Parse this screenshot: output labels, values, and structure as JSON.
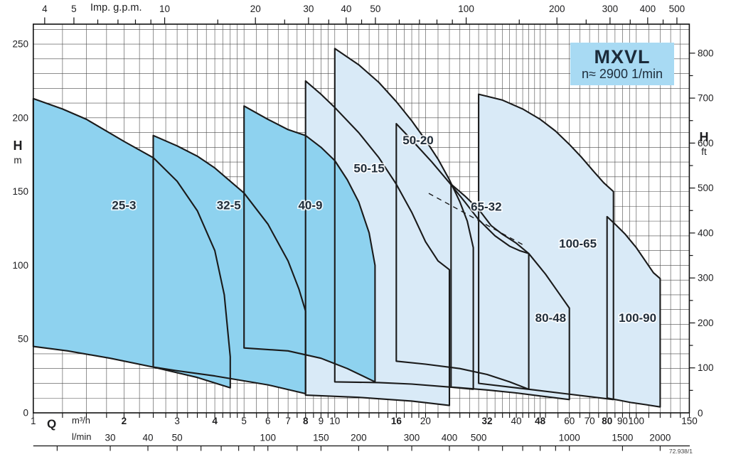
{
  "figure": {
    "model": "MXVL",
    "speed_label": "n≈ 2900 1/min",
    "doc_number": "72.938/1"
  },
  "colors": {
    "dark_fill": "#8ed2ef",
    "light_fill": "#d9eaf7",
    "title_box_fill": "#a8daf3",
    "outline": "#1a1a1a",
    "grid": "#4a4a4a",
    "text": "#1d1d1f",
    "label_text": "#222e3a"
  },
  "chart_data": {
    "type": "area",
    "title": "MXVL",
    "subtitle": "n≈ 2900 1/min",
    "x_scale": "log",
    "x_axis_bottom": {
      "name": "Q",
      "units": [
        "m³/h",
        "l/min"
      ],
      "range_m3h": [
        1,
        150
      ],
      "m3h_labeled": [
        1,
        2,
        3,
        4,
        5,
        6,
        7,
        8,
        9,
        10,
        16,
        20,
        32,
        40,
        48,
        60,
        70,
        80,
        90,
        100,
        150
      ],
      "m3h_bold": [
        2,
        4,
        8,
        16,
        32,
        48,
        80
      ],
      "minor_gridlines": [
        1,
        1.25,
        1.5,
        1.75,
        2,
        2.25,
        2.5,
        2.75,
        3,
        3.25,
        3.5,
        3.75,
        4,
        4.25,
        4.5,
        4.75,
        5,
        5.5,
        6,
        6.5,
        7,
        7.5,
        8,
        8.5,
        9,
        9.5,
        10,
        11,
        12,
        13,
        14,
        15,
        16,
        17,
        18,
        19,
        20,
        22,
        24,
        26,
        28,
        30,
        32,
        34,
        36,
        38,
        40,
        42,
        44,
        46,
        48,
        50,
        55,
        60,
        65,
        70,
        75,
        80,
        85,
        90,
        95,
        100,
        110,
        120,
        130,
        140,
        150
      ],
      "lmin_labeled": [
        30,
        40,
        50,
        100,
        150,
        200,
        300,
        400,
        500,
        1000,
        1500,
        2000
      ],
      "lmin_ticks": [
        20,
        30,
        40,
        50,
        60,
        70,
        80,
        90,
        100,
        125,
        150,
        200,
        250,
        300,
        400,
        500,
        600,
        700,
        800,
        900,
        1000,
        1500,
        2000
      ],
      "m3h_per_lmin": 0.06
    },
    "x_axis_top": {
      "name": "Imp. g.p.m.",
      "labeled": [
        4,
        5,
        10,
        20,
        30,
        40,
        50,
        100,
        200,
        300,
        400,
        500
      ],
      "ticks": [
        4,
        5,
        6,
        7,
        8,
        9,
        10,
        15,
        20,
        25,
        30,
        35,
        40,
        45,
        50,
        60,
        70,
        80,
        90,
        100,
        150,
        200,
        250,
        300,
        350,
        400,
        450,
        500
      ],
      "m3h_per_gpm": 0.27276
    },
    "y_axis_left": {
      "name": "H",
      "unit": "m",
      "labeled": [
        0,
        50,
        100,
        150,
        200,
        250
      ],
      "grid_step_m": 10,
      "max_m": 263.5
    },
    "y_axis_right": {
      "name": "H",
      "unit": "ft",
      "labeled": [
        0,
        100,
        200,
        300,
        400,
        500,
        600,
        700,
        800
      ],
      "minor_step_ft": 50,
      "m_per_ft": 0.3048
    },
    "envelopes": [
      {
        "name": "25-3",
        "family": "dark",
        "label_at": [
          2.0,
          141
        ],
        "points": [
          [
            1,
            45
          ],
          [
            1,
            213
          ],
          [
            1.25,
            206
          ],
          [
            1.5,
            199
          ],
          [
            2,
            184
          ],
          [
            2.5,
            173
          ],
          [
            3,
            157
          ],
          [
            3.5,
            137
          ],
          [
            4,
            110
          ],
          [
            4.3,
            80
          ],
          [
            4.5,
            38
          ],
          [
            4.5,
            17
          ],
          [
            3.5,
            24
          ],
          [
            2.5,
            31
          ],
          [
            1.8,
            37
          ],
          [
            1.3,
            42
          ]
        ]
      },
      {
        "name": "32-5",
        "family": "dark",
        "label_at": [
          4.45,
          141
        ],
        "points": [
          [
            2.5,
            31
          ],
          [
            2.5,
            188
          ],
          [
            3,
            181
          ],
          [
            3.5,
            174
          ],
          [
            4,
            166
          ],
          [
            5,
            149
          ],
          [
            6,
            128
          ],
          [
            7,
            103
          ],
          [
            7.6,
            84
          ],
          [
            8,
            69
          ],
          [
            8,
            13
          ],
          [
            6,
            19
          ],
          [
            4,
            25
          ],
          [
            3,
            28.5
          ]
        ]
      },
      {
        "name": "40-9",
        "family": "dark",
        "label_at": [
          8.3,
          141
        ],
        "points": [
          [
            5,
            44
          ],
          [
            5,
            208
          ],
          [
            6,
            199
          ],
          [
            7,
            192
          ],
          [
            8,
            188
          ],
          [
            9,
            180
          ],
          [
            10,
            171
          ],
          [
            11,
            158
          ],
          [
            12,
            143
          ],
          [
            13,
            122
          ],
          [
            13.6,
            100
          ],
          [
            13.6,
            21
          ],
          [
            11,
            30
          ],
          [
            9,
            37
          ],
          [
            7,
            42
          ]
        ]
      },
      {
        "name": "50-15",
        "family": "light",
        "label_at": [
          13,
          166
        ],
        "points": [
          [
            8,
            12
          ],
          [
            8,
            225
          ],
          [
            9,
            216
          ],
          [
            10,
            207
          ],
          [
            12,
            190
          ],
          [
            14,
            173
          ],
          [
            16,
            155
          ],
          [
            18,
            136
          ],
          [
            20,
            116
          ],
          [
            22,
            103
          ],
          [
            24,
            97
          ],
          [
            24,
            5
          ],
          [
            18,
            8
          ],
          [
            12,
            10.5
          ]
        ]
      },
      {
        "name": "50-20",
        "family": "light",
        "label_at": [
          18.9,
          185
        ],
        "points": [
          [
            10,
            21
          ],
          [
            10,
            247
          ],
          [
            12,
            236
          ],
          [
            14,
            224
          ],
          [
            16,
            211
          ],
          [
            18,
            198
          ],
          [
            20,
            185
          ],
          [
            22,
            172
          ],
          [
            24,
            158
          ],
          [
            26,
            143
          ],
          [
            27.5,
            130
          ],
          [
            28.8,
            112
          ],
          [
            28.8,
            16
          ],
          [
            24,
            17.5
          ],
          [
            18,
            19.5
          ],
          [
            14,
            20.5
          ]
        ]
      },
      {
        "name": "65-32",
        "family": "light",
        "label_at": [
          31.8,
          140
        ],
        "points": [
          [
            16,
            35
          ],
          [
            16,
            196
          ],
          [
            18,
            185
          ],
          [
            21,
            170
          ],
          [
            24,
            156
          ],
          [
            27,
            143
          ],
          [
            30,
            131
          ],
          [
            34,
            120
          ],
          [
            38,
            113
          ],
          [
            41,
            110
          ],
          [
            44,
            108
          ],
          [
            44,
            16
          ],
          [
            38,
            21
          ],
          [
            32,
            26
          ],
          [
            26,
            30
          ],
          [
            20,
            33
          ]
        ]
      },
      {
        "name": "80-48",
        "family": "light",
        "label_at": [
          52,
          64.5
        ],
        "points": [
          [
            24.3,
            17.5
          ],
          [
            24.3,
            155
          ],
          [
            27,
            147
          ],
          [
            30,
            138
          ],
          [
            33,
            127
          ],
          [
            36,
            121
          ],
          [
            40,
            115
          ],
          [
            44,
            108
          ],
          [
            50,
            94
          ],
          [
            55,
            82
          ],
          [
            60,
            71
          ],
          [
            60,
            9
          ],
          [
            50,
            11
          ],
          [
            40,
            13.5
          ],
          [
            32,
            15.5
          ],
          [
            26,
            17
          ]
        ]
      },
      {
        "name": "100-65",
        "family": "light",
        "label_at": [
          64,
          115
        ],
        "points": [
          [
            30,
            20
          ],
          [
            30,
            216
          ],
          [
            36,
            212
          ],
          [
            42,
            206
          ],
          [
            48,
            199
          ],
          [
            54,
            191
          ],
          [
            60,
            182
          ],
          [
            66,
            173
          ],
          [
            72,
            164
          ],
          [
            78,
            156
          ],
          [
            84,
            150
          ],
          [
            84,
            9
          ],
          [
            70,
            11
          ],
          [
            58,
            13
          ],
          [
            46,
            15.5
          ],
          [
            38,
            17.5
          ]
        ]
      },
      {
        "name": "100-90",
        "family": "light",
        "label_at": [
          101,
          64.5
        ],
        "points": [
          [
            80,
            10
          ],
          [
            80,
            133
          ],
          [
            86,
            127
          ],
          [
            92,
            121
          ],
          [
            100,
            112
          ],
          [
            108,
            102
          ],
          [
            114,
            95
          ],
          [
            120,
            91
          ],
          [
            120,
            4
          ],
          [
            108,
            5.5
          ],
          [
            96,
            7
          ],
          [
            88,
            8.5
          ]
        ]
      }
    ],
    "dashed_line": {
      "from": [
        20.5,
        148.8
      ],
      "to": [
        42.3,
        113.7
      ]
    }
  }
}
